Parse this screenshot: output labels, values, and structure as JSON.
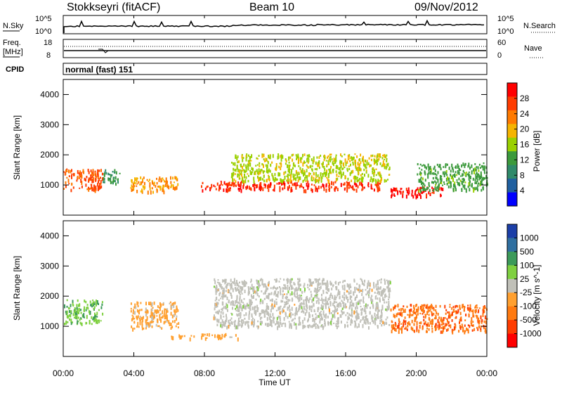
{
  "header": {
    "station": "Stokkseyri (fitACF)",
    "beam": "Beam 10",
    "date": "09/Nov/2012"
  },
  "noise_panel": {
    "left_label": "N.Sky",
    "left_ticks": [
      "10^5",
      "10^0"
    ],
    "right_label": "N.Search",
    "right_ticks": [
      "10^5",
      "10^0"
    ]
  },
  "freq_panel": {
    "left_label_1": "Freq.",
    "left_label_2": "[MHz]",
    "left_ticks": [
      "18",
      "8"
    ],
    "right_label": "Nave",
    "right_ticks": [
      "60",
      "0"
    ]
  },
  "cpid": {
    "label": "CPID",
    "value": "normal (fast) 151"
  },
  "x_axis": {
    "title": "Time UT",
    "ticks": [
      "00:00",
      "04:00",
      "08:00",
      "12:00",
      "16:00",
      "20:00",
      "00:00"
    ]
  },
  "power_panel": {
    "ylabel": "Slant Range [km]",
    "yticks": [
      "4000",
      "3000",
      "2000",
      "1000"
    ],
    "colorbar_label": "Power [dB]",
    "colorbar_ticks": [
      "28",
      "24",
      "20",
      "16",
      "12",
      "8",
      "4"
    ],
    "colorbar_colors": [
      "#ff0000",
      "#ff3c00",
      "#ff7a00",
      "#f5b400",
      "#9ad000",
      "#3c9a3c",
      "#2f8a6a",
      "#2060a0",
      "#0000ff"
    ]
  },
  "velocity_panel": {
    "ylabel": "Slant Range [km]",
    "yticks": [
      "4000",
      "3000",
      "2000",
      "1000"
    ],
    "colorbar_label": "Velocity [m s^-1]",
    "colorbar_ticks": [
      "1000",
      "500",
      "100",
      "25",
      "-25",
      "-100",
      "-500",
      "-1000"
    ],
    "colorbar_colors": [
      "#1c3fa8",
      "#2f6fa0",
      "#3c9a5a",
      "#7fd040",
      "#c0c0b8",
      "#ffa030",
      "#ff7a10",
      "#ff3c00",
      "#ff0000"
    ]
  },
  "chart_data": [
    {
      "type": "heatmap",
      "title": "Power",
      "xlabel": "Time UT",
      "ylabel": "Slant Range [km]",
      "xlim": [
        0,
        24
      ],
      "ylim": [
        0,
        4500
      ],
      "clim": [
        0,
        30
      ],
      "features": [
        {
          "t_start": 0.0,
          "t_end": 2.2,
          "range_center": 1200,
          "range_width": 700,
          "level": 24
        },
        {
          "t_start": 2.2,
          "t_end": 3.2,
          "range_center": 1300,
          "range_width": 500,
          "level": 10
        },
        {
          "t_start": 3.8,
          "t_end": 6.5,
          "range_center": 1050,
          "range_width": 500,
          "level": 20
        },
        {
          "t_start": 7.8,
          "t_end": 18.0,
          "range_center": 1000,
          "range_width": 300,
          "level": 26
        },
        {
          "t_start": 9.5,
          "t_end": 18.5,
          "range_center": 1600,
          "range_width": 900,
          "level": 16
        },
        {
          "t_start": 18.5,
          "t_end": 21.5,
          "range_center": 800,
          "range_width": 300,
          "level": 28
        },
        {
          "t_start": 20.0,
          "t_end": 24.0,
          "range_center": 1300,
          "range_width": 900,
          "level": 12
        }
      ]
    },
    {
      "type": "heatmap",
      "title": "Velocity",
      "xlabel": "Time UT",
      "ylabel": "Slant Range [km]",
      "xlim": [
        0,
        24
      ],
      "ylim": [
        0,
        4500
      ],
      "clim": [
        -1000,
        1000
      ],
      "features": [
        {
          "t_start": 0.0,
          "t_end": 2.2,
          "range_center": 1500,
          "range_width": 800,
          "level": 300
        },
        {
          "t_start": 3.8,
          "t_end": 6.5,
          "range_center": 1400,
          "range_width": 900,
          "level": -200
        },
        {
          "t_start": 8.5,
          "t_end": 18.5,
          "range_center": 1800,
          "range_width": 1600,
          "level": 0
        },
        {
          "t_start": 6.0,
          "t_end": 10.0,
          "range_center": 700,
          "range_width": 150,
          "level": -200
        },
        {
          "t_start": 18.5,
          "t_end": 24.0,
          "range_center": 1300,
          "range_width": 900,
          "level": -500
        }
      ]
    }
  ]
}
